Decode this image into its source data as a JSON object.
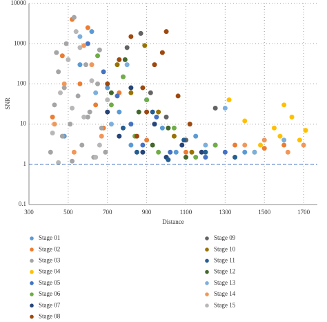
{
  "chart_data": {
    "type": "scatter",
    "x_label": "Distance",
    "y_label": "SNR",
    "xlim": [
      300,
      1770
    ],
    "xticks": [
      300,
      500,
      700,
      900,
      1100,
      1300,
      1500,
      1700
    ],
    "ylim": [
      0.1,
      10000
    ],
    "yticks": [
      0.1,
      1,
      10,
      100,
      1000,
      10000
    ],
    "log_y": true,
    "grid": true,
    "reference_line": {
      "value": 1,
      "color": "#4472c4"
    },
    "series": [
      {
        "name": "Stage 01",
        "color": "#5b9bd5",
        "x": [
          480,
          560,
          620,
          700,
          760,
          820,
          900,
          980,
          1050,
          1150,
          1250,
          1400
        ],
        "values": [
          5,
          300,
          2000,
          80,
          20,
          3,
          40,
          8,
          2,
          5,
          3,
          2
        ]
      },
      {
        "name": "Stage 02",
        "color": "#ed7d31",
        "x": [
          420,
          470,
          520,
          560,
          600,
          640,
          680,
          760,
          900,
          1100,
          1350,
          1500,
          1600
        ],
        "values": [
          15,
          500,
          4000,
          100,
          2500,
          30,
          8,
          60,
          4,
          2,
          3,
          2.5,
          3
        ]
      },
      {
        "name": "Stage 03",
        "color": "#a5a5a5",
        "x": [
          410,
          430,
          450,
          470,
          490,
          510,
          530,
          550,
          570,
          590,
          610,
          630,
          650,
          670,
          690,
          440,
          520,
          600,
          660,
          480
        ],
        "values": [
          2,
          30,
          200,
          5,
          1000,
          10,
          4500,
          50,
          3,
          300,
          20,
          1.5,
          100,
          8,
          2,
          600,
          1.2,
          15,
          700,
          80
        ]
      },
      {
        "name": "Stage 04",
        "color": "#ffc000",
        "x": [
          1320,
          1400,
          1480,
          1550,
          1600,
          1640,
          1680,
          1710,
          1450,
          1580
        ],
        "values": [
          40,
          12,
          3,
          8,
          30,
          15,
          4,
          7,
          2,
          5
        ]
      },
      {
        "name": "Stage 05",
        "color": "#4472c4",
        "x": [
          600,
          680,
          750,
          820,
          880,
          950,
          1020,
          1100,
          1200,
          1300
        ],
        "values": [
          1000,
          200,
          50,
          10,
          3,
          15,
          2,
          4,
          1.5,
          2
        ]
      },
      {
        "name": "Stage 06",
        "color": "#70ad47",
        "x": [
          650,
          720,
          780,
          840,
          900,
          960,
          1040,
          1150,
          1250
        ],
        "values": [
          500,
          30,
          150,
          5,
          40,
          2,
          8,
          1.5,
          3
        ]
      },
      {
        "name": "Stage 07",
        "color": "#264478",
        "x": [
          700,
          760,
          820,
          880,
          940,
          1000,
          1080,
          1180
        ],
        "values": [
          20,
          5,
          80,
          2,
          10,
          1.5,
          3,
          2
        ]
      },
      {
        "name": "Stage 08",
        "color": "#9e480e",
        "x": [
          700,
          760,
          820,
          880,
          940,
          1000,
          1060,
          1120,
          980,
          900,
          850
        ],
        "values": [
          100,
          400,
          1500,
          80,
          300,
          2000,
          50,
          10,
          600,
          20,
          5
        ]
      },
      {
        "name": "Stage 09",
        "color": "#636363",
        "x": [
          800,
          870,
          920,
          1000,
          1100,
          1250
        ],
        "values": [
          800,
          1800,
          60,
          15,
          4,
          25
        ]
      },
      {
        "name": "Stage 10",
        "color": "#997300",
        "x": [
          750,
          820,
          890,
          960,
          1040,
          1130
        ],
        "values": [
          300,
          60,
          900,
          20,
          5,
          2
        ]
      },
      {
        "name": "Stage 11",
        "color": "#255e91",
        "x": [
          780,
          850,
          930,
          1010,
          1090,
          1200,
          1350
        ],
        "values": [
          8,
          2,
          20,
          1.3,
          4,
          2,
          1.5
        ]
      },
      {
        "name": "Stage 12",
        "color": "#43682b",
        "x": [
          720,
          790,
          860,
          930,
          1010,
          1100
        ],
        "values": [
          60,
          400,
          20,
          3,
          8,
          1.5
        ]
      },
      {
        "name": "Stage 13",
        "color": "#7cafdd",
        "x": [
          560,
          640,
          720,
          800,
          1200,
          1300,
          1450,
          1600
        ],
        "values": [
          1500,
          60,
          10,
          300,
          3,
          25,
          2,
          4
        ]
      },
      {
        "name": "Stage 14",
        "color": "#f1975a",
        "x": [
          430,
          480,
          530,
          580,
          620,
          670,
          1400,
          1500,
          1620,
          1700
        ],
        "values": [
          10,
          100,
          2,
          900,
          300,
          5,
          3,
          4,
          2,
          3
        ]
      },
      {
        "name": "Stage 15",
        "color": "#b7b7b7",
        "x": [
          420,
          460,
          500,
          540,
          580,
          620,
          660,
          700,
          450,
          560,
          640,
          520
        ],
        "values": [
          6,
          60,
          400,
          2000,
          15,
          120,
          3,
          40,
          1.1,
          800,
          1.5,
          25
        ]
      }
    ]
  }
}
